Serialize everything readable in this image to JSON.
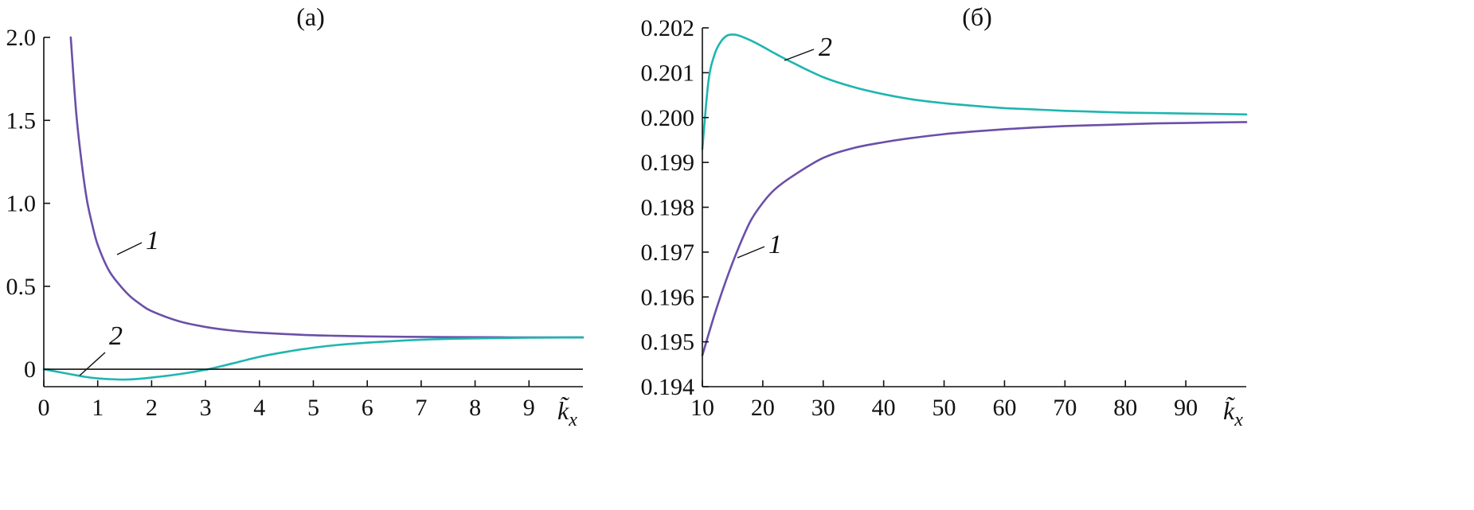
{
  "chart_data": [
    {
      "type": "line",
      "panel_label": "(a)",
      "xlabel": "k̃",
      "xlabel_sub": "x",
      "xlim": [
        0,
        10
      ],
      "ylim": [
        -0.1,
        2.0
      ],
      "x_ticks": [
        "0",
        "1",
        "2",
        "3",
        "4",
        "5",
        "6",
        "7",
        "8",
        "9"
      ],
      "y_ticks": [
        "2.0",
        "1.5",
        "1.0",
        "0.5",
        "0"
      ],
      "zero_line": true,
      "series": [
        {
          "name": "1",
          "color": "#6b4fa8",
          "points": [
            [
              0.5,
              2.0
            ],
            [
              0.6,
              1.55
            ],
            [
              0.7,
              1.25
            ],
            [
              0.8,
              1.02
            ],
            [
              0.9,
              0.87
            ],
            [
              1.0,
              0.75
            ],
            [
              1.2,
              0.6
            ],
            [
              1.4,
              0.51
            ],
            [
              1.6,
              0.44
            ],
            [
              1.8,
              0.39
            ],
            [
              2.0,
              0.35
            ],
            [
              2.5,
              0.29
            ],
            [
              3.0,
              0.255
            ],
            [
              3.5,
              0.233
            ],
            [
              4.0,
              0.22
            ],
            [
              5.0,
              0.205
            ],
            [
              6.0,
              0.198
            ],
            [
              7.0,
              0.195
            ],
            [
              8.0,
              0.193
            ],
            [
              9.0,
              0.192
            ],
            [
              10.0,
              0.192
            ]
          ]
        },
        {
          "name": "2",
          "color": "#1fb5b0",
          "points": [
            [
              0.0,
              0.0
            ],
            [
              0.25,
              -0.015
            ],
            [
              0.5,
              -0.03
            ],
            [
              0.75,
              -0.045
            ],
            [
              1.0,
              -0.055
            ],
            [
              1.25,
              -0.06
            ],
            [
              1.5,
              -0.062
            ],
            [
              1.75,
              -0.058
            ],
            [
              2.0,
              -0.05
            ],
            [
              2.5,
              -0.03
            ],
            [
              3.0,
              -0.003
            ],
            [
              3.5,
              0.035
            ],
            [
              4.0,
              0.075
            ],
            [
              4.5,
              0.105
            ],
            [
              5.0,
              0.13
            ],
            [
              5.5,
              0.148
            ],
            [
              6.0,
              0.16
            ],
            [
              6.5,
              0.17
            ],
            [
              7.0,
              0.178
            ],
            [
              7.5,
              0.183
            ],
            [
              8.0,
              0.186
            ],
            [
              9.0,
              0.19
            ],
            [
              10.0,
              0.192
            ]
          ]
        }
      ]
    },
    {
      "type": "line",
      "panel_label": "(б)",
      "xlabel": "k̃",
      "xlabel_sub": "x",
      "xlim": [
        10,
        100
      ],
      "ylim": [
        0.194,
        0.202
      ],
      "x_ticks": [
        "10",
        "20",
        "30",
        "40",
        "50",
        "60",
        "70",
        "80",
        "90"
      ],
      "y_ticks": [
        "0.202",
        "0.201",
        "0.200",
        "0.199",
        "0.198",
        "0.197",
        "0.196",
        "0.195",
        "0.194"
      ],
      "series": [
        {
          "name": "1",
          "color": "#6b4fa8",
          "points": [
            [
              10,
              0.1947
            ],
            [
              12,
              0.1956
            ],
            [
              14,
              0.1964
            ],
            [
              16,
              0.1971
            ],
            [
              18,
              0.1977
            ],
            [
              20,
              0.1981
            ],
            [
              22,
              0.1984
            ],
            [
              25,
              0.1987
            ],
            [
              30,
              0.1991
            ],
            [
              35,
              0.19932
            ],
            [
              40,
              0.19945
            ],
            [
              45,
              0.19955
            ],
            [
              50,
              0.19963
            ],
            [
              55,
              0.19969
            ],
            [
              60,
              0.19974
            ],
            [
              65,
              0.19978
            ],
            [
              70,
              0.19981
            ],
            [
              75,
              0.19983
            ],
            [
              80,
              0.19985
            ],
            [
              85,
              0.19987
            ],
            [
              90,
              0.19988
            ],
            [
              95,
              0.19989
            ],
            [
              100,
              0.1999
            ]
          ]
        },
        {
          "name": "2",
          "color": "#1fb5b0",
          "points": [
            [
              10,
              0.1993
            ],
            [
              11,
              0.2008
            ],
            [
              12,
              0.2014
            ],
            [
              13,
              0.20168
            ],
            [
              14,
              0.20182
            ],
            [
              15,
              0.20185
            ],
            [
              16,
              0.20183
            ],
            [
              18,
              0.20172
            ],
            [
              20,
              0.20158
            ],
            [
              22,
              0.20143
            ],
            [
              25,
              0.20122
            ],
            [
              30,
              0.2009
            ],
            [
              35,
              0.20068
            ],
            [
              40,
              0.20052
            ],
            [
              45,
              0.2004
            ],
            [
              50,
              0.20032
            ],
            [
              55,
              0.20026
            ],
            [
              60,
              0.20021
            ],
            [
              65,
              0.20018
            ],
            [
              70,
              0.20015
            ],
            [
              75,
              0.20013
            ],
            [
              80,
              0.20011
            ],
            [
              85,
              0.2001
            ],
            [
              90,
              0.20009
            ],
            [
              95,
              0.20008
            ],
            [
              100,
              0.20007
            ]
          ]
        }
      ]
    }
  ]
}
